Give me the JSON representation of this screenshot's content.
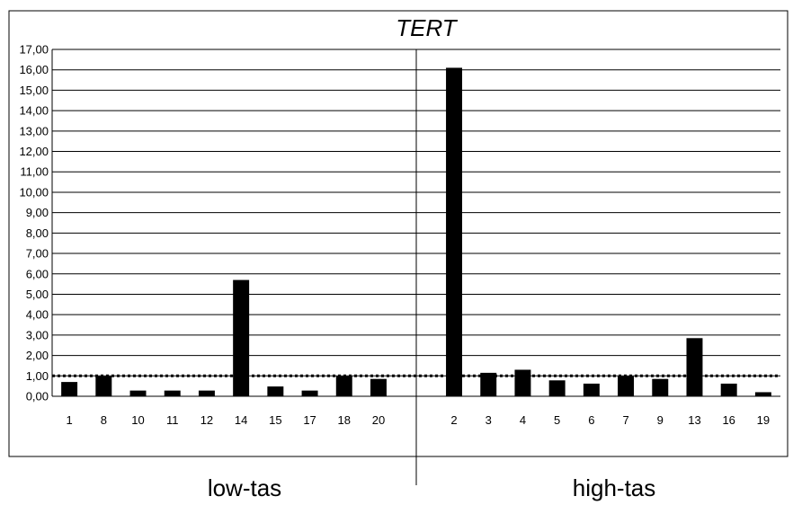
{
  "chart_data": {
    "type": "bar",
    "title": "TERT",
    "xlabel": "",
    "ylabel": "",
    "ylim": [
      0,
      17
    ],
    "y_ticks": [
      "0,00",
      "1,00",
      "2,00",
      "3,00",
      "4,00",
      "5,00",
      "6,00",
      "7,00",
      "8,00",
      "9,00",
      "10,00",
      "11,00",
      "12,00",
      "13,00",
      "14,00",
      "15,00",
      "16,00",
      "17,00"
    ],
    "grid": true,
    "legend": "none",
    "reference_line": {
      "value": 1.0,
      "style": "dotted"
    },
    "groups": [
      {
        "label": "low-tas",
        "categories": [
          "1",
          "8",
          "10",
          "11",
          "12",
          "14",
          "15",
          "17",
          "18",
          "20"
        ],
        "values": [
          0.7,
          0.98,
          0.28,
          0.28,
          0.28,
          5.7,
          0.48,
          0.28,
          0.98,
          0.85
        ]
      },
      {
        "label": "high-tas",
        "categories": [
          "2",
          "3",
          "4",
          "5",
          "6",
          "7",
          "9",
          "13",
          "16",
          "19"
        ],
        "values": [
          16.1,
          1.15,
          1.3,
          0.78,
          0.62,
          0.98,
          0.85,
          2.85,
          0.62,
          0.2
        ]
      }
    ],
    "bar_color": "#000000"
  }
}
